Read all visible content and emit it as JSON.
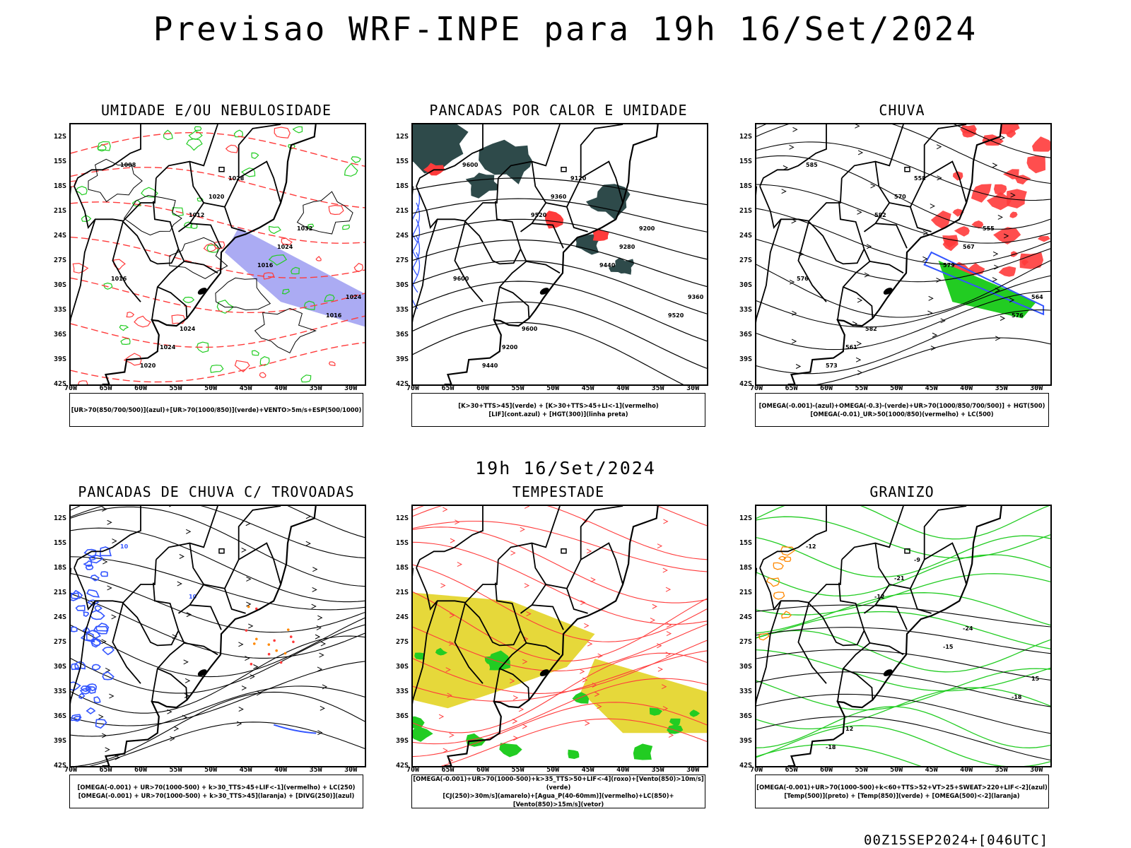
{
  "page": {
    "title": "Previsao WRF-INPE  para 19h 16/Set/2024",
    "mid_title": "19h 16/Set/2024",
    "footer": "00Z15SEP2024+[046UTC]"
  },
  "axes": {
    "lat_labels": [
      "12S",
      "15S",
      "18S",
      "21S",
      "24S",
      "27S",
      "30S",
      "33S",
      "36S",
      "39S",
      "42S"
    ],
    "lon_labels": [
      "70W",
      "65W",
      "60W",
      "55W",
      "50W",
      "45W",
      "40W",
      "35W",
      "30W"
    ]
  },
  "colors": {
    "border": "#000000",
    "red": "#ff3b3b",
    "green": "#22cc22",
    "blue": "#3355ff",
    "dark_teal": "#2e4a4a",
    "yellow": "#e6d83a",
    "orange": "#ff8800",
    "purple": "#8888ee"
  },
  "panels": [
    {
      "title": "UMIDADE E/OU NEBULOSIDADE",
      "legend": [
        "[UR>70(850/700/500)](azul)+[UR>70(1000/850)](verde)+VENTO>5m/s+ESP(500/1000)"
      ],
      "contour_labels": [
        "1008",
        "1012",
        "1016",
        "1016",
        "1020",
        "1020",
        "1024",
        "1024",
        "1024",
        "1028",
        "1032",
        "1016",
        "1024"
      ]
    },
    {
      "title": "PANCADAS POR CALOR E UMIDADE",
      "legend": [
        "[K>30+TTS>45](verde) + [K>30+TTS>45+LI<-1](vermelho)",
        "[LIF](cont.azul) + [HGT(300)](linha preta)"
      ],
      "contour_labels": [
        "9600",
        "9520",
        "9440",
        "9520",
        "9440",
        "9360",
        "9280",
        "9360",
        "9200",
        "9120",
        "9200",
        "9600",
        "9600"
      ]
    },
    {
      "title": "CHUVA",
      "legend": [
        "[OMEGA(-0.001)-(azul)+OMEGA(-0.3)-(verde)+UR>70(1000/850/700/500)] + HGT(500)",
        "[OMEGA(-0.01)_UR>50(1000/850)(vermelho) + LC(500)"
      ],
      "contour_labels": [
        "585",
        "582",
        "579",
        "576",
        "573",
        "570",
        "567",
        "564",
        "561",
        "558",
        "555",
        "576",
        "582"
      ]
    },
    {
      "title": "PANCADAS DE CHUVA C/ TROVOADAS",
      "legend": [
        "[OMEGA(-0.001) + UR>70(1000-500) + k>30_TTS>45+LIF<-1](vermelho) + LC(250)",
        "[OMEGA(-0.001) + UR>70(1000-500) + k>30_TTS>45](laranja) + [DIVG(250)](azul)"
      ],
      "contour_labels": [
        "10",
        "10"
      ]
    },
    {
      "title": "TEMPESTADE",
      "legend": [
        "[OMEGA(-0.001)+UR>70(1000-500)+k>35_TTS>50+LIF<-4](roxo)+[Vento(850)>10m/s](verde)",
        "[CJ(250)>30m/s](amarelo)+[Agua_P(40-60mm)](vermelho)+LC(850)+[Vento(850)>15m/s](vetor)"
      ],
      "contour_labels": []
    },
    {
      "title": "GRANIZO",
      "legend": [
        "[OMEGA(-0.001)+UR>70(1000-500)+k<60+TTS>52+VT>25+SWEAT>220+LIF<-2](azul)",
        "[Temp(500)](preto) + [Temp(850)](verde) + [OMEGA(500)<-2](laranja)"
      ],
      "contour_labels": [
        "-12",
        "-12",
        "-15",
        "-18",
        "-18",
        "-21",
        "-24",
        "15",
        "12",
        "-9"
      ]
    }
  ]
}
